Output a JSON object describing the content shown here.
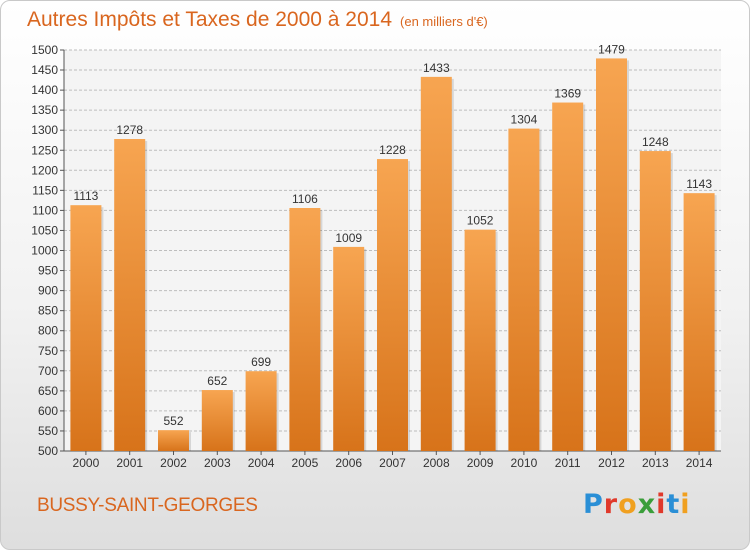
{
  "title": "Autres Impôts et Taxes de 2000 à 2014",
  "unit_note": "(en milliers d'€)",
  "city": "BUSSY-SAINT-GEORGES",
  "logo": {
    "letters": [
      "P",
      "r",
      "o",
      "x",
      "i",
      "t",
      "i"
    ],
    "colors": [
      "#2a8fd6",
      "#e0392b",
      "#f0a020",
      "#3a9e3a",
      "#e0392b",
      "#2a8fd6",
      "#f0a020"
    ]
  },
  "colors": {
    "bar_light": "#f7a551",
    "bar_dark": "#d7731a",
    "title": "#d9661f"
  },
  "chart_data": {
    "type": "bar",
    "categories": [
      "2000",
      "2001",
      "2002",
      "2003",
      "2004",
      "2005",
      "2006",
      "2007",
      "2008",
      "2009",
      "2010",
      "2011",
      "2012",
      "2013",
      "2014"
    ],
    "values": [
      1113,
      1278,
      552,
      652,
      699,
      1106,
      1009,
      1228,
      1433,
      1052,
      1304,
      1369,
      1479,
      1248,
      1143
    ],
    "ylim": [
      500,
      1500
    ],
    "yticks": [
      500,
      550,
      600,
      650,
      700,
      750,
      800,
      850,
      900,
      950,
      1000,
      1050,
      1100,
      1150,
      1200,
      1250,
      1300,
      1350,
      1400,
      1450,
      1500
    ],
    "grid": true,
    "xlabel": "",
    "ylabel": ""
  }
}
